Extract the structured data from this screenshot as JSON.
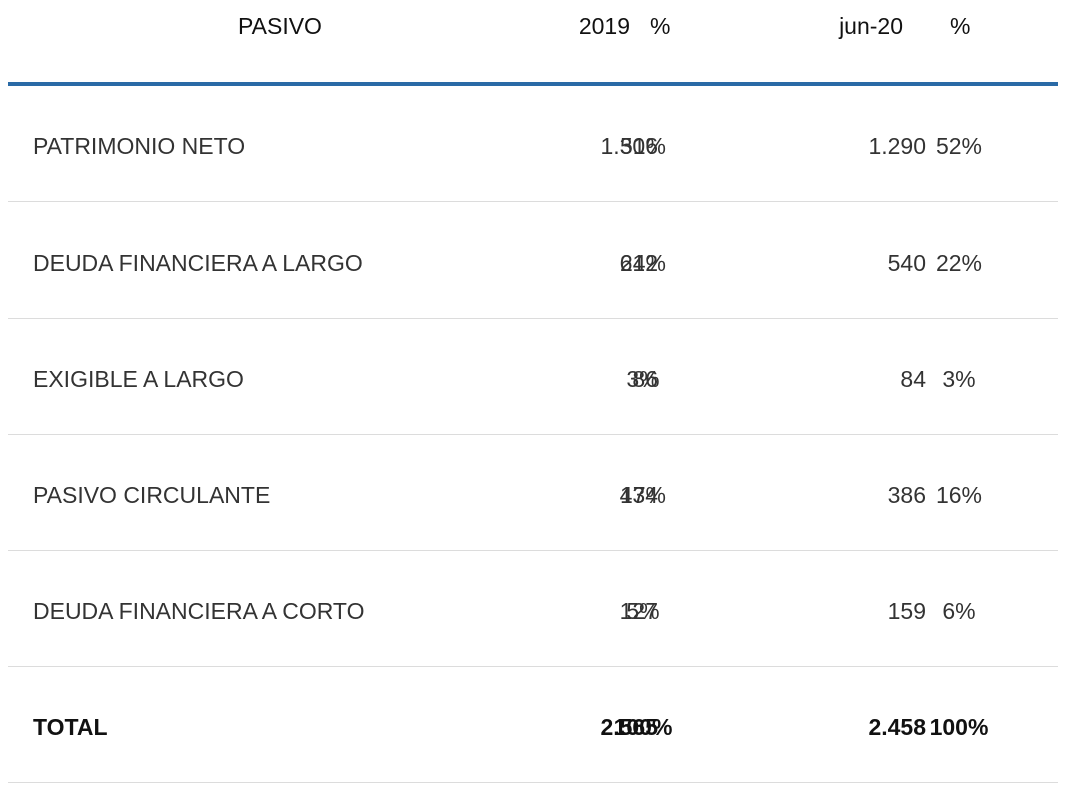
{
  "header": {
    "label": "PASIVO",
    "col_year": "2019",
    "col_pct1": "%",
    "col_period": "jun-20",
    "col_pct2": "%"
  },
  "rows": [
    {
      "label": "PATRIMONIO NETO",
      "v2019": "1.306",
      "p2019": "51%",
      "vjun20": "1.290",
      "pjun20": "52%"
    },
    {
      "label": "DEUDA FINANCIERA A LARGO",
      "v2019": "612",
      "p2019": "24%",
      "vjun20": "540",
      "pjun20": "22%"
    },
    {
      "label": "EXIGIBLE A LARGO",
      "v2019": "86",
      "p2019": "3%",
      "vjun20": "84",
      "pjun20": "3%"
    },
    {
      "label": "PASIVO CIRCULANTE",
      "v2019": "434",
      "p2019": "17%",
      "vjun20": "386",
      "pjun20": "16%"
    },
    {
      "label": "DEUDA FINANCIERA A CORTO",
      "v2019": "127",
      "p2019": "5%",
      "vjun20": "159",
      "pjun20": "6%"
    }
  ],
  "total": {
    "label": "TOTAL",
    "v2019": "2.565",
    "p2019": "100%",
    "vjun20": "2.458",
    "pjun20": "100%"
  },
  "colors": {
    "header_rule": "#2a6aa6",
    "row_divider": "#dcdcdc",
    "text": "#333333"
  }
}
